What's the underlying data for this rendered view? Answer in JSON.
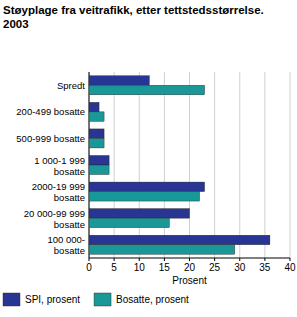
{
  "chart_data": {
    "type": "bar",
    "orientation": "horizontal",
    "title": "Støyplage fra veitrafikk, etter tettstedsstørrelse. 2003",
    "x_label": "Prosent",
    "categories": [
      "Spredt",
      "200-499 bosatte",
      "500-999 bosatte",
      "1 000-1 999 bosatte",
      "2000-19 999 bosatte",
      "20 000-99 999 bosatte",
      "100 000- bosatte"
    ],
    "series": [
      {
        "name": "SPI, prosent",
        "color": "#283593",
        "values": [
          12,
          2,
          3,
          4,
          23,
          20,
          36
        ]
      },
      {
        "name": "Bosatte, prosent",
        "color": "#1a9898",
        "values": [
          23,
          3,
          3,
          4,
          22,
          16,
          29
        ]
      }
    ],
    "xlim": [
      0,
      40
    ],
    "xticks": [
      0,
      5,
      10,
      15,
      20,
      25,
      30,
      35,
      40
    ],
    "grid": true,
    "legend": "bottom"
  }
}
